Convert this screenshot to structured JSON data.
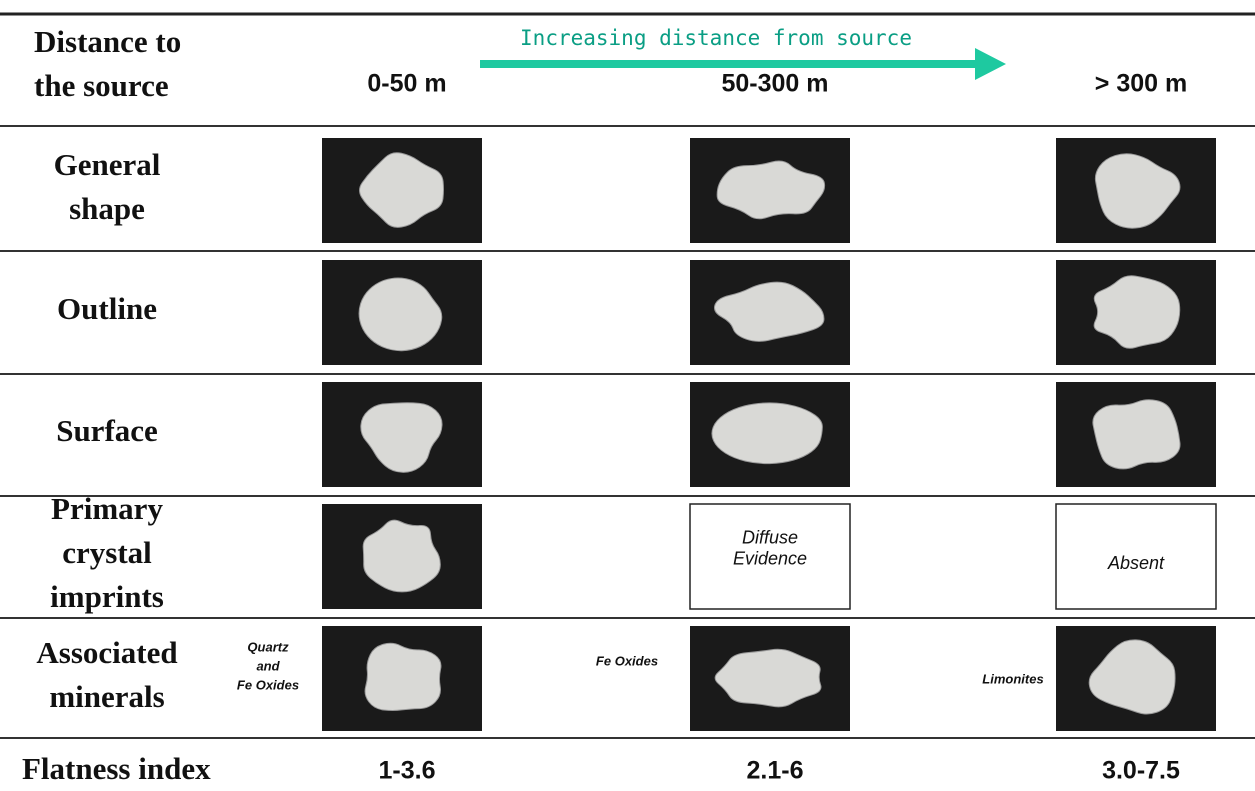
{
  "header": {
    "label": [
      "Distance to",
      "the source"
    ],
    "arrow_label": "Increasing distance from source",
    "columns": [
      "0-50 m",
      "50-300 m",
      "> 300 m"
    ]
  },
  "rows": [
    {
      "label": [
        "General",
        "shape"
      ]
    },
    {
      "label": [
        "Outline"
      ]
    },
    {
      "label": [
        "Surface"
      ]
    },
    {
      "label": [
        "Primary",
        "crystal",
        "imprints"
      ],
      "boxes": [
        [
          "Diffuse",
          "Evidence"
        ],
        [
          "Absent"
        ]
      ]
    },
    {
      "label": [
        "Associated",
        "minerals"
      ],
      "minerals": [
        [
          "Quartz",
          "and",
          "Fe Oxides"
        ],
        [
          "Fe Oxides"
        ],
        [
          "Limonites"
        ]
      ]
    }
  ],
  "flatness_index": {
    "label": "Flatness index",
    "values": [
      "1-3.6",
      "2.1-6",
      "3.0-7.5"
    ]
  }
}
